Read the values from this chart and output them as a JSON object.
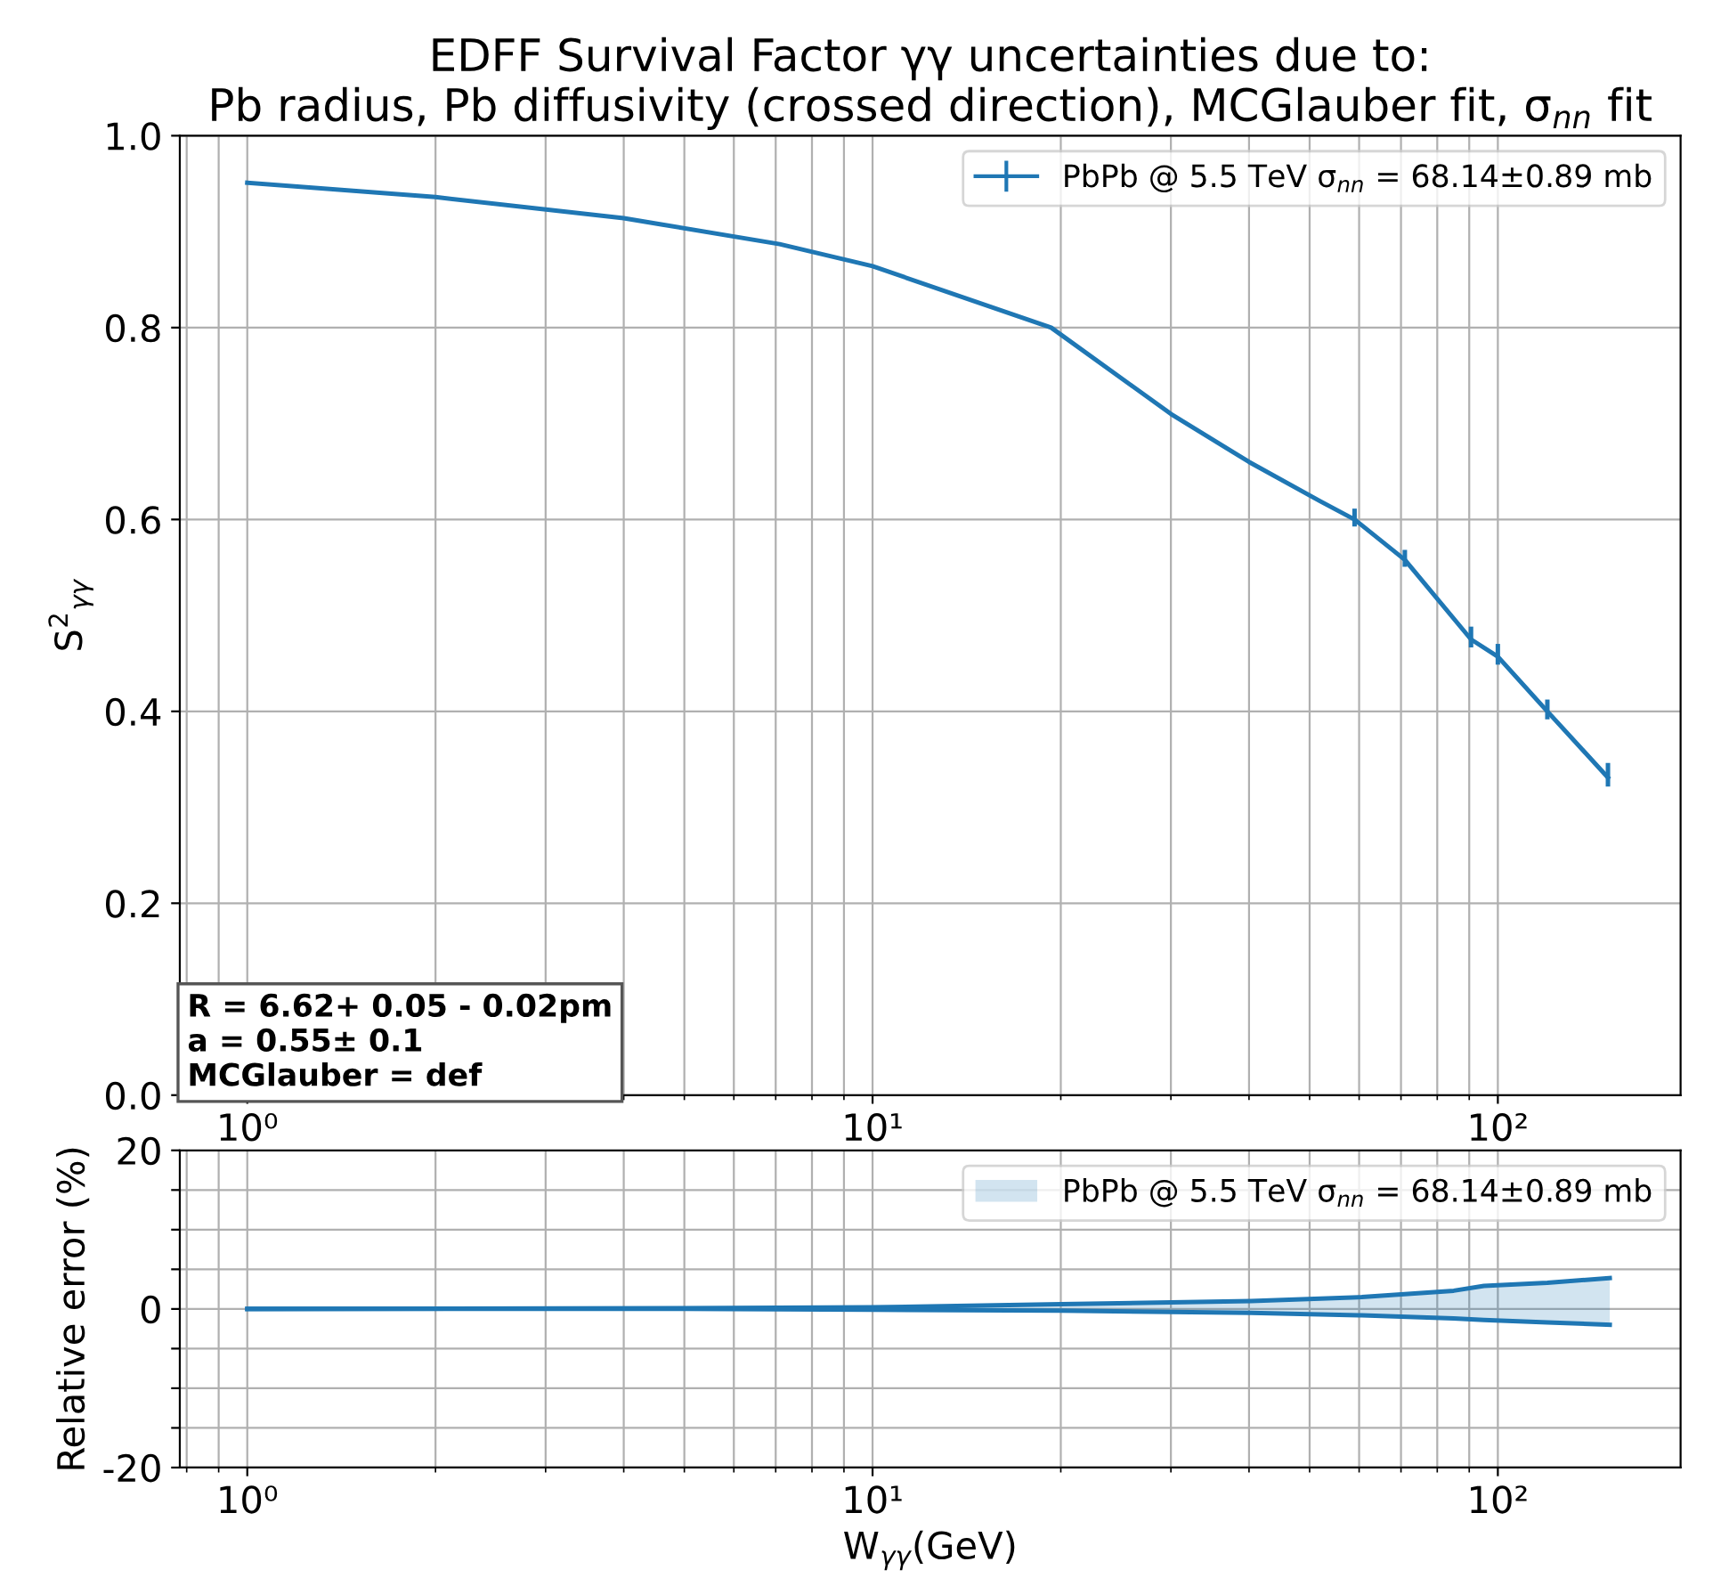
{
  "chart_data": [
    {
      "type": "line",
      "title": "EDFF Survival Factor γγ uncertainties due to:\nPb radius, Pb diffusivity (crossed direction), MCGlauber fit, σ$_{nn}$ fit",
      "ylabel": "S$^{2}$$_{γγ}$",
      "x": [
        1,
        2,
        4,
        7.1,
        10,
        19.3,
        30,
        40,
        52,
        59,
        71,
        90.6,
        100,
        120,
        150
      ],
      "series": [
        {
          "name": "PbPb @ 5.5 TeV σ$_{nn}$ = 68.14±0.89 mb",
          "color": "#1f77b4",
          "values": [
            0.951,
            0.936,
            0.914,
            0.887,
            0.864,
            0.8,
            0.71,
            0.66,
            0.619,
            0.6,
            0.558,
            0.475,
            0.457,
            0.4,
            0.331
          ],
          "errors": [
            null,
            null,
            null,
            null,
            null,
            null,
            null,
            null,
            null,
            [
              0.595,
              0.609
            ],
            [
              0.553,
              0.566
            ],
            [
              0.469,
              0.486
            ],
            [
              0.451,
              0.468
            ],
            [
              0.394,
              0.41
            ],
            [
              0.324,
              0.344
            ]
          ]
        }
      ],
      "xlim": [
        0.78,
        196
      ],
      "log": "x",
      "xticks": [
        {
          "value": 1,
          "label": "10⁰"
        },
        {
          "value": 10,
          "label": "10¹"
        },
        {
          "value": 100,
          "label": "10²"
        }
      ],
      "ylim": [
        0,
        1
      ],
      "yticks": [
        {
          "value": 0,
          "label": "0.0"
        },
        0.2,
        0.4,
        0.6,
        0.8,
        {
          "value": 1,
          "label": "1.0"
        }
      ],
      "grid": true,
      "legend": "top right",
      "annotations": [
        "R = 6.62+ 0.05 - 0.02pm\na = 0.55± 0.1\nMCGlauber = def"
      ]
    },
    {
      "type": "area",
      "xlabel": "W$_{γγ}$(GeV)",
      "ylabel": "Relative error (%)",
      "x": [
        1,
        5,
        10,
        20,
        40.3,
        60.6,
        85,
        95,
        120,
        151
      ],
      "series": [
        {
          "type": "line",
          "name": "PbPb @ 5.5 TeV σ$_{nn}$ = 68.14±0.89 mb",
          "color": "#1f77b4",
          "values": [
            0,
            0.1,
            0.2,
            0.6,
            1.0,
            1.5,
            2.3,
            2.9,
            3.3,
            3.9
          ],
          "lower": [
            0,
            0,
            -0.1,
            -0.2,
            -0.5,
            -0.8,
            -1.2,
            -1.4,
            -1.7,
            -2.0
          ],
          "upper": [
            0,
            0.1,
            0.2,
            0.6,
            1.0,
            1.5,
            2.3,
            2.9,
            3.3,
            3.9
          ]
        },
        {
          "type": "line",
          "color": "#1f77b4",
          "values": [
            0,
            0,
            -0.1,
            -0.2,
            -0.5,
            -0.8,
            -1.2,
            -1.4,
            -1.7,
            -2.0
          ]
        }
      ],
      "xlim": [
        0.78,
        196
      ],
      "log": "x",
      "xticks": [
        {
          "value": 1,
          "label": "10⁰"
        },
        {
          "value": 10,
          "label": "10¹"
        },
        {
          "value": 100,
          "label": "10²"
        }
      ],
      "ylim": [
        -20,
        20
      ],
      "yticks": [
        -20,
        {
          "value": -15,
          "label": null
        },
        {
          "value": -10,
          "label": null
        },
        {
          "value": -5,
          "label": null
        },
        0,
        {
          "value": 5,
          "label": null
        },
        {
          "value": 10,
          "label": null
        },
        {
          "value": 15,
          "label": null
        },
        20
      ],
      "grid": true,
      "legend": "top right"
    }
  ]
}
